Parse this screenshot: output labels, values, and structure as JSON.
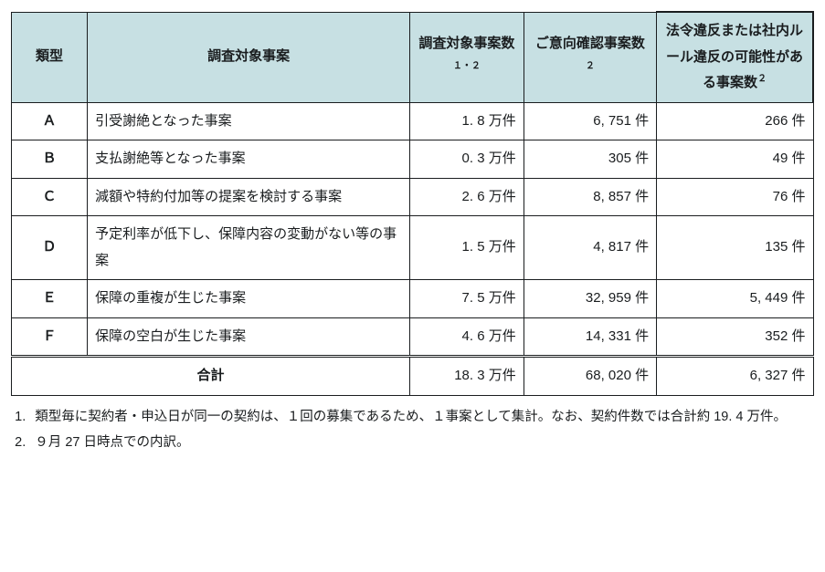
{
  "table": {
    "header_bg": "#c7e0e3",
    "border_color": "#1a1d1f",
    "columns": {
      "type": "類型",
      "desc": "調査対象事案",
      "v1": "調査対象事案数",
      "v1_sup": "１・２",
      "v2": "ご意向確認事案数",
      "v2_sup": "２",
      "v3": "法令違反または社内ルール違反の可能性がある事案数",
      "v3_sup": "２"
    },
    "rows": [
      {
        "type": "Ａ",
        "desc": "引受謝絶となった事案",
        "v1": "1. 8 万件",
        "v2": "6, 751 件",
        "v3": "266 件"
      },
      {
        "type": "Ｂ",
        "desc": "支払謝絶等となった事案",
        "v1": "0. 3 万件",
        "v2": "305 件",
        "v3": "49 件"
      },
      {
        "type": "Ｃ",
        "desc": "減額や特約付加等の提案を検討する事案",
        "v1": "2. 6 万件",
        "v2": "8, 857 件",
        "v3": "76 件"
      },
      {
        "type": "Ｄ",
        "desc": "予定利率が低下し、保障内容の変動がない等の事案",
        "v1": "1. 5 万件",
        "v2": "4, 817 件",
        "v3": "135 件"
      },
      {
        "type": "Ｅ",
        "desc": "保障の重複が生じた事案",
        "v1": "7. 5 万件",
        "v2": "32, 959 件",
        "v3": "5, 449 件"
      },
      {
        "type": "Ｆ",
        "desc": "保障の空白が生じた事案",
        "v1": "4. 6 万件",
        "v2": "14, 331 件",
        "v3": "352 件"
      }
    ],
    "total": {
      "label": "合計",
      "v1": "18. 3 万件",
      "v2": "68, 020 件",
      "v3": "6, 327 件"
    }
  },
  "notes": {
    "n1": "類型毎に契約者・申込日が同一の契約は、１回の募集であるため、１事案として集計。なお、契約件数では合計約 19. 4 万件。",
    "n2": "９月 27 日時点での内訳。"
  }
}
